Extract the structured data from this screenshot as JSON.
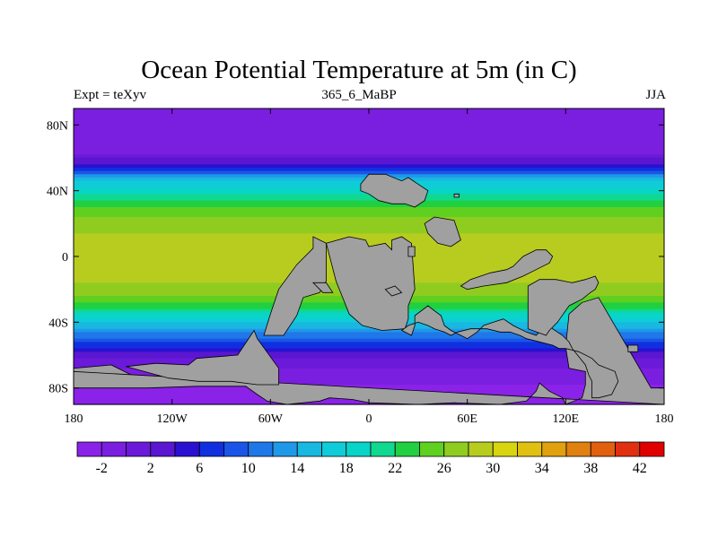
{
  "chart_data": {
    "type": "heatmap",
    "title": "Ocean Potential Temperature at 5m (in C)",
    "subtitle_left": "Expt = teXyv",
    "subtitle_center": "365_6_MaBP",
    "subtitle_right": "JJA",
    "xlim": [
      -180,
      180
    ],
    "ylim": [
      -90,
      90
    ],
    "x_ticks": [
      {
        "value": -180,
        "label": "180"
      },
      {
        "value": -120,
        "label": "120W"
      },
      {
        "value": -60,
        "label": "60W"
      },
      {
        "value": 0,
        "label": "0"
      },
      {
        "value": 60,
        "label": "60E"
      },
      {
        "value": 120,
        "label": "120E"
      },
      {
        "value": 180,
        "label": "180"
      }
    ],
    "y_ticks": [
      {
        "value": 80,
        "label": "80N"
      },
      {
        "value": 40,
        "label": "40N"
      },
      {
        "value": 0,
        "label": "0"
      },
      {
        "value": -40,
        "label": "40S"
      },
      {
        "value": -80,
        "label": "80S"
      }
    ],
    "colorbar": {
      "levels": [
        -4,
        -2,
        0,
        2,
        4,
        6,
        8,
        10,
        12,
        14,
        16,
        18,
        20,
        22,
        24,
        26,
        28,
        30,
        32,
        34,
        36,
        38,
        40,
        42,
        44
      ],
      "labels": [
        -2,
        2,
        6,
        10,
        14,
        18,
        22,
        26,
        30,
        34,
        38,
        42
      ],
      "colors": [
        "#8a22e8",
        "#7a1ee0",
        "#6a1ad8",
        "#5a16d0",
        "#2a10d0",
        "#1030e0",
        "#1a55e8",
        "#2078e8",
        "#2098e8",
        "#18b8e0",
        "#10ccd8",
        "#08d4c8",
        "#10d890",
        "#20d040",
        "#60d020",
        "#90cc20",
        "#b8cc20",
        "#d8d410",
        "#e0c010",
        "#e0a010",
        "#e08010",
        "#e06010",
        "#e03010",
        "#e00000"
      ]
    },
    "land_color": "#a0a0a0",
    "zonal_profile": {
      "lat": [
        -90,
        -78,
        -68,
        -60,
        -52,
        -44,
        -36,
        -28,
        -20,
        -10,
        0,
        10,
        20,
        28,
        36,
        44,
        50,
        56,
        62,
        72,
        90
      ],
      "temp": [
        -2.5,
        -2,
        0,
        3,
        8,
        14,
        19,
        24,
        27.5,
        28.5,
        29,
        28.5,
        27,
        25,
        21,
        17,
        11,
        4,
        0,
        -1.5,
        -2
      ]
    },
    "land": [
      {
        "lon": [
          -157,
          -145,
          -150,
          -160,
          -167,
          -176,
          -180,
          -180,
          -157,
          -158
        ],
        "lat": [
          -66,
          -72,
          -78,
          -78,
          -75,
          -73,
          -74,
          -68,
          -66,
          -66
        ]
      },
      {
        "lon": [
          -180,
          -180,
          -135,
          -105,
          -75,
          -68,
          -62,
          -50,
          -40,
          -30,
          -24,
          -10,
          0,
          30,
          52,
          80,
          96,
          102,
          104,
          110,
          118,
          120,
          130,
          132,
          132,
          122,
          120,
          122,
          130,
          140,
          172,
          180,
          180
        ],
        "lat": [
          -70,
          -80,
          -80,
          -79,
          -79,
          -84,
          -88,
          -90,
          -89,
          -88,
          -86,
          -87,
          -89,
          -90,
          -89,
          -90,
          -88,
          -82,
          -77,
          -82,
          -86,
          -90,
          -86,
          -78,
          -70,
          -68,
          -55,
          -35,
          -28,
          -25,
          -80,
          -80,
          -90
        ]
      },
      {
        "lon": [
          -148,
          -130,
          -110,
          -105,
          -80,
          -70,
          -68,
          -55,
          -55,
          -68,
          -84,
          -104,
          -122,
          -148
        ],
        "lat": [
          -67,
          -65,
          -66,
          -62,
          -60,
          -45,
          -50,
          -68,
          -78,
          -78,
          -76,
          -76,
          -74,
          -67
        ]
      },
      {
        "lon": [
          -64,
          -52,
          -44,
          -40,
          -30,
          -26,
          -26,
          -34,
          -34,
          -44,
          -55,
          -60,
          -64
        ],
        "lat": [
          -48,
          -48,
          -36,
          -25,
          -22,
          -15,
          8,
          12,
          5,
          -5,
          -20,
          -35,
          -48
        ]
      },
      {
        "lon": [
          -26,
          -12,
          -2,
          0,
          10,
          14,
          14,
          20,
          26,
          28,
          24,
          24,
          22,
          8,
          -4,
          -12,
          -20,
          -26
        ],
        "lat": [
          8,
          12,
          10,
          6,
          8,
          4,
          10,
          12,
          8,
          -20,
          -30,
          -38,
          -44,
          -45,
          -42,
          -35,
          -15,
          8
        ]
      },
      {
        "lon": [
          20,
          26,
          28,
          28,
          36,
          44,
          46,
          50,
          56,
          60,
          66,
          70,
          76,
          82,
          88,
          96,
          102,
          106,
          108,
          112,
          118,
          122,
          124,
          132,
          134,
          136,
          136,
          140,
          148,
          152,
          150,
          140,
          136,
          128,
          120,
          116,
          112,
          104,
          96,
          92,
          86,
          80,
          72,
          62,
          54,
          50,
          46,
          40,
          36,
          30,
          24,
          20
        ],
        "lat": [
          -45,
          -48,
          -42,
          -36,
          -30,
          -36,
          -42,
          -45,
          -48,
          -50,
          -46,
          -42,
          -40,
          -38,
          -42,
          -46,
          -48,
          -44,
          -40,
          -44,
          -48,
          -52,
          -56,
          -66,
          -72,
          -76,
          -86,
          -86,
          -84,
          -76,
          -70,
          -66,
          -62,
          -58,
          -56,
          -56,
          -54,
          -52,
          -50,
          -48,
          -46,
          -46,
          -44,
          -44,
          -46,
          -48,
          -46,
          -44,
          -42,
          -40,
          -42,
          -45
        ]
      },
      {
        "lon": [
          97,
          108,
          110,
          115,
          122,
          130,
          135,
          138,
          140,
          138,
          132,
          124,
          114,
          104,
          97,
          97
        ],
        "lat": [
          -44,
          -48,
          -45,
          -40,
          -30,
          -26,
          -22,
          -20,
          -16,
          -12,
          -14,
          -16,
          -14,
          -14,
          -18,
          -44
        ]
      },
      {
        "lon": [
          -5,
          0,
          10,
          20,
          24,
          30,
          36,
          34,
          28,
          22,
          14,
          6,
          0,
          -5,
          -5
        ],
        "lat": [
          44,
          50,
          50,
          46,
          48,
          44,
          40,
          34,
          30,
          32,
          32,
          34,
          38,
          40,
          44
        ]
      },
      {
        "lon": [
          34,
          40,
          52,
          54,
          56,
          50,
          42,
          36,
          34
        ],
        "lat": [
          20,
          24,
          22,
          16,
          10,
          6,
          8,
          14,
          20
        ]
      },
      {
        "lon": [
          88,
          94,
          102,
          108,
          112,
          110,
          102,
          94,
          84,
          70,
          60,
          56,
          62,
          74,
          84,
          88
        ],
        "lat": [
          -6,
          0,
          4,
          4,
          0,
          -4,
          -8,
          -12,
          -16,
          -18,
          -20,
          -18,
          -14,
          -10,
          -8,
          -6
        ]
      },
      {
        "lon": [
          -34,
          -26,
          -22,
          -28,
          -34
        ],
        "lat": [
          -16,
          -16,
          -22,
          -22,
          -16
        ]
      },
      {
        "lon": [
          10,
          16,
          20,
          14,
          10
        ],
        "lat": [
          -20,
          -18,
          -22,
          -24,
          -20
        ]
      },
      {
        "lon": [
          52,
          55,
          55,
          52,
          52
        ],
        "lat": [
          36,
          36,
          38,
          38,
          36
        ]
      },
      {
        "lon": [
          158,
          164,
          164,
          158,
          158
        ],
        "lat": [
          -54,
          -54,
          -58,
          -58,
          -54
        ]
      },
      {
        "lon": [
          24,
          28,
          28,
          24,
          24
        ],
        "lat": [
          0,
          0,
          6,
          6,
          0
        ]
      }
    ]
  }
}
